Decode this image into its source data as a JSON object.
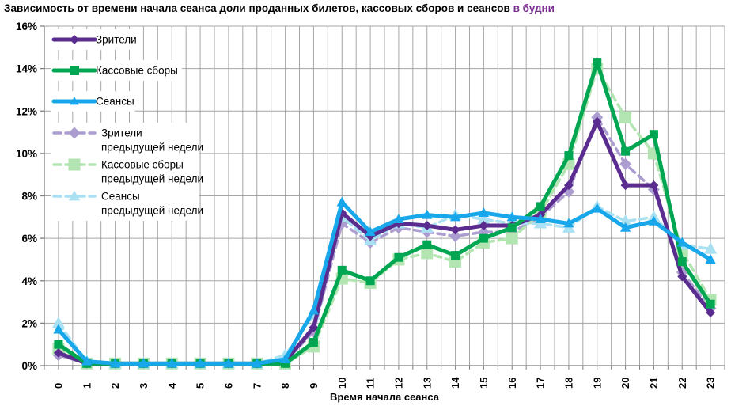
{
  "title": {
    "main": "Зависимость от времени начала сеанса доли проданных билетов, кассовых сборов и сеансов ",
    "highlight": "в будни",
    "highlight_color": "#7B2F92"
  },
  "chart_data": {
    "type": "line",
    "xlabel": "Время начала сеанса",
    "ylabel": "",
    "ylim": [
      0,
      16
    ],
    "ytick_step": 2,
    "ytick_labels": [
      "0%",
      "2%",
      "4%",
      "6%",
      "8%",
      "10%",
      "12%",
      "14%",
      "16%"
    ],
    "xtick_labels": [
      "0",
      "1",
      "2",
      "3",
      "4",
      "5",
      "6",
      "7",
      "8",
      "9",
      "10",
      "11",
      "12",
      "13",
      "14",
      "15",
      "16",
      "17",
      "18",
      "19",
      "20",
      "21",
      "22",
      "23"
    ],
    "grid": true,
    "grid_color": "#A6A6A6",
    "axis_color": "#808080",
    "legend_position": "upper-left-inside",
    "series": [
      {
        "name": "Зрители",
        "legend_lines": [
          "Зрители"
        ],
        "color": "#5B2C8F",
        "dash": false,
        "marker": "diamond",
        "values": [
          0.6,
          0.1,
          0.1,
          0.1,
          0.1,
          0.1,
          0.1,
          0.1,
          0.2,
          1.8,
          7.2,
          6.1,
          6.7,
          6.6,
          6.4,
          6.6,
          6.6,
          7.1,
          8.5,
          11.5,
          8.5,
          8.5,
          4.2,
          2.5
        ]
      },
      {
        "name": "Кассовые сборы",
        "legend_lines": [
          "Кассовые сборы"
        ],
        "color": "#00A651",
        "dash": false,
        "marker": "square",
        "values": [
          1.0,
          0.1,
          0.1,
          0.1,
          0.1,
          0.1,
          0.1,
          0.1,
          0.1,
          1.1,
          4.5,
          4.0,
          5.1,
          5.7,
          5.2,
          6.0,
          6.5,
          7.5,
          9.9,
          14.3,
          10.1,
          10.9,
          4.9,
          2.9
        ]
      },
      {
        "name": "Сеансы",
        "legend_lines": [
          "Сеансы"
        ],
        "color": "#17A7EA",
        "dash": false,
        "marker": "triangle",
        "values": [
          1.7,
          0.2,
          0.1,
          0.1,
          0.1,
          0.1,
          0.1,
          0.1,
          0.3,
          2.6,
          7.7,
          6.3,
          6.9,
          7.1,
          7.0,
          7.2,
          7.0,
          6.9,
          6.7,
          7.4,
          6.5,
          6.8,
          5.8,
          5.0
        ]
      },
      {
        "name": "Зрители предыдущей недели",
        "legend_lines": [
          "Зрители",
          "предыдущей недели"
        ],
        "color": "#AC9DD0",
        "dash": true,
        "marker": "diamond",
        "values": [
          0.5,
          0.1,
          0.1,
          0.1,
          0.1,
          0.1,
          0.1,
          0.1,
          0.2,
          1.6,
          6.7,
          5.8,
          6.5,
          6.3,
          6.1,
          6.3,
          6.3,
          7.0,
          8.2,
          11.7,
          9.5,
          8.3,
          4.4,
          2.7
        ]
      },
      {
        "name": "Кассовые сборы предыдущей недели",
        "legend_lines": [
          "Кассовые сборы",
          "предыдущей недели"
        ],
        "color": "#B2E5B2",
        "dash": true,
        "marker": "square",
        "values": [
          0.8,
          0.1,
          0.1,
          0.1,
          0.1,
          0.1,
          0.1,
          0.1,
          0.1,
          0.9,
          4.1,
          3.9,
          5.0,
          5.3,
          4.9,
          5.8,
          6.0,
          7.2,
          9.5,
          14.0,
          11.7,
          10.0,
          5.4,
          3.1
        ]
      },
      {
        "name": "Сеансы предыдущей недели",
        "legend_lines": [
          "Сеансы",
          "предыдущей недели"
        ],
        "color": "#A9E1F2",
        "dash": true,
        "marker": "triangle",
        "values": [
          2.0,
          0.2,
          0.1,
          0.1,
          0.1,
          0.1,
          0.1,
          0.1,
          0.5,
          2.4,
          7.0,
          5.9,
          6.7,
          6.5,
          7.1,
          6.9,
          6.7,
          6.7,
          6.5,
          7.5,
          6.8,
          7.0,
          5.7,
          5.5
        ]
      }
    ]
  }
}
